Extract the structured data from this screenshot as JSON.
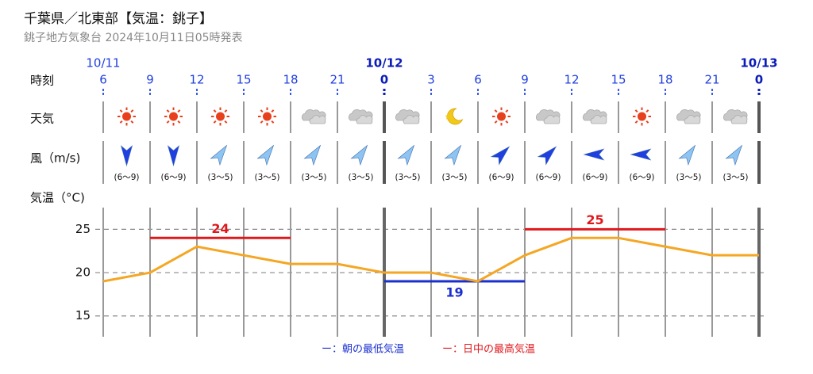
{
  "header": {
    "title": "千葉県／北東部【気温：銚子】",
    "subtitle": "銚子地方気象台 2024年10月11日05時発表"
  },
  "chart_data": {
    "type": "line",
    "row_labels": {
      "time": "時刻",
      "weather": "天気",
      "wind": "風（m/s)",
      "temp": "気温（°C)"
    },
    "dates": [
      "10/11",
      null,
      null,
      null,
      null,
      null,
      "10/12",
      null,
      null,
      null,
      null,
      null,
      null,
      null,
      "10/13"
    ],
    "categories": [
      "6",
      "9",
      "12",
      "15",
      "18",
      "21",
      "0",
      "3",
      "6",
      "9",
      "12",
      "15",
      "18",
      "21",
      "0"
    ],
    "weather": [
      "sun",
      "sun",
      "sun",
      "sun",
      "cloud",
      "cloud",
      "cloud",
      "moon",
      "sun",
      "cloud",
      "cloud",
      "sun",
      "cloud",
      "cloud"
    ],
    "wind": {
      "direction_deg": [
        180,
        180,
        35,
        35,
        35,
        35,
        35,
        35,
        45,
        45,
        -90,
        -90,
        35,
        35
      ],
      "colors": [
        "#1f3fe0",
        "#1f3fe0",
        "#8ec4f2",
        "#8ec4f2",
        "#8ec4f2",
        "#8ec4f2",
        "#8ec4f2",
        "#8ec4f2",
        "#1f3fe0",
        "#1f3fe0",
        "#1f3fe0",
        "#1f3fe0",
        "#8ec4f2",
        "#8ec4f2"
      ],
      "labels": [
        "(6〜9)",
        "(6〜9)",
        "(3〜5)",
        "(3〜5)",
        "(3〜5)",
        "(3〜5)",
        "(3〜5)",
        "(3〜5)",
        "(6〜9)",
        "(6〜9)",
        "(6〜9)",
        "(6〜9)",
        "(3〜5)",
        "(3〜5)"
      ]
    },
    "series": [
      {
        "color": "#f5a623",
        "values": [
          19,
          20,
          23,
          22,
          21,
          21,
          20,
          20,
          19,
          22,
          24,
          24,
          23,
          22,
          22
        ]
      }
    ],
    "ranges": [
      {
        "value": 24,
        "color": "#e0181c",
        "span": [
          1,
          4
        ],
        "kind": "max"
      },
      {
        "value": 19,
        "color": "#1a2fd0",
        "span": [
          6,
          9
        ],
        "kind": "min"
      },
      {
        "value": 25,
        "color": "#e0181c",
        "span": [
          9,
          12
        ],
        "kind": "max"
      }
    ],
    "legend": [
      {
        "label": "ー：朝の最低気温",
        "color": "#1a2fd0"
      },
      {
        "label": "ー：日中の最高気温",
        "color": "#e0181c"
      }
    ],
    "ylim": [
      12.6,
      27.5
    ],
    "yticks": [
      15,
      20,
      25
    ],
    "grid": true
  }
}
